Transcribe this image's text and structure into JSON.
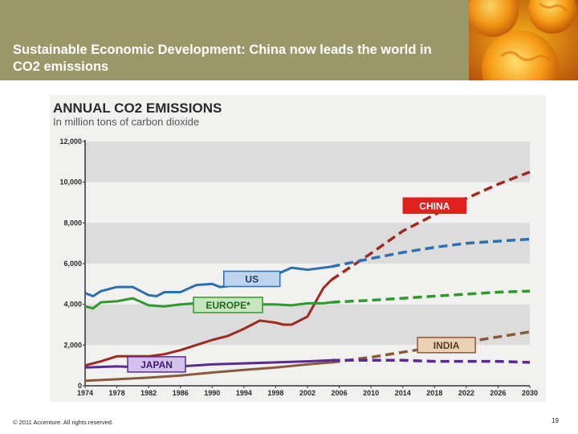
{
  "slide": {
    "title": "Sustainable Economic Development: China now leads the world in CO2 emissions",
    "copyright": "© 2011 Accenture. All rights reserved.",
    "page_number": "19"
  },
  "colors": {
    "header_bg": "#9a9868",
    "china": "#9e2a22",
    "us": "#2d6fb0",
    "europe": "#2e9a2e",
    "india": "#8a5a3c",
    "japan": "#5a2a90",
    "china_label_bg": "#e0221f",
    "band": "#dcdcdc"
  },
  "chart_data": {
    "type": "line",
    "title": "ANNUAL CO2 EMISSIONS",
    "subtitle": "In million tons of carbon dioxide",
    "xlabel": "",
    "ylabel": "",
    "x_ticks": [
      "1974",
      "1978",
      "1982",
      "1986",
      "1990",
      "1994",
      "1998",
      "2002",
      "2006",
      "2010",
      "2014",
      "2018",
      "2022",
      "2026",
      "2030"
    ],
    "y_ticks": [
      "0",
      "2,000",
      "4,000",
      "6,000",
      "8,000",
      "10,000",
      "12,000"
    ],
    "xlim": [
      1974,
      2030
    ],
    "ylim": [
      0,
      12000
    ],
    "grid": "alternating horizontal bands",
    "legend": "inline labels",
    "projection_start": 2005,
    "series": [
      {
        "name": "CHINA",
        "color": "#9e2a22",
        "x": [
          1974,
          1976,
          1978,
          1980,
          1982,
          1984,
          1986,
          1988,
          1990,
          1992,
          1994,
          1995,
          1996,
          1997,
          1998,
          1999,
          2000,
          2002,
          2004,
          2005,
          2010,
          2014,
          2018,
          2022,
          2026,
          2030
        ],
        "y": [
          1000,
          1200,
          1450,
          1450,
          1450,
          1550,
          1750,
          2000,
          2250,
          2450,
          2800,
          3000,
          3200,
          3150,
          3100,
          3000,
          3000,
          3400,
          4800,
          5200,
          6500,
          7600,
          8400,
          9200,
          9900,
          10500
        ]
      },
      {
        "name": "US",
        "color": "#2d6fb0",
        "x": [
          1974,
          1975,
          1976,
          1978,
          1980,
          1982,
          1983,
          1984,
          1986,
          1988,
          1990,
          1991,
          1992,
          1994,
          1996,
          1998,
          2000,
          2002,
          2004,
          2005,
          2010,
          2014,
          2018,
          2022,
          2026,
          2030
        ],
        "y": [
          4550,
          4400,
          4650,
          4850,
          4850,
          4450,
          4400,
          4600,
          4600,
          4950,
          5000,
          4850,
          4900,
          5050,
          5300,
          5450,
          5800,
          5700,
          5800,
          5850,
          6250,
          6550,
          6800,
          7000,
          7100,
          7200
        ]
      },
      {
        "name": "EUROPE*",
        "color": "#2e9a2e",
        "x": [
          1974,
          1975,
          1976,
          1978,
          1980,
          1982,
          1984,
          1986,
          1988,
          1990,
          1992,
          1994,
          1996,
          1998,
          2000,
          2002,
          2004,
          2005,
          2010,
          2014,
          2018,
          2022,
          2026,
          2030
        ],
        "y": [
          3900,
          3800,
          4100,
          4150,
          4300,
          3950,
          3900,
          4000,
          4050,
          4000,
          3950,
          3900,
          4000,
          4000,
          3950,
          4050,
          4050,
          4100,
          4200,
          4300,
          4400,
          4500,
          4600,
          4650
        ]
      },
      {
        "name": "INDIA",
        "color": "#8a5a3c",
        "x": [
          1974,
          1978,
          1982,
          1986,
          1990,
          1994,
          1998,
          2002,
          2005,
          2010,
          2014,
          2018,
          2022,
          2026,
          2030
        ],
        "y": [
          250,
          320,
          400,
          500,
          650,
          780,
          900,
          1050,
          1150,
          1400,
          1650,
          1900,
          2150,
          2400,
          2650
        ]
      },
      {
        "name": "JAPAN",
        "color": "#5a2a90",
        "x": [
          1974,
          1978,
          1982,
          1986,
          1990,
          1994,
          1998,
          2002,
          2005,
          2010,
          2014,
          2018,
          2022,
          2026,
          2030
        ],
        "y": [
          900,
          950,
          900,
          950,
          1050,
          1100,
          1150,
          1200,
          1250,
          1250,
          1250,
          1200,
          1200,
          1200,
          1150
        ]
      }
    ]
  }
}
